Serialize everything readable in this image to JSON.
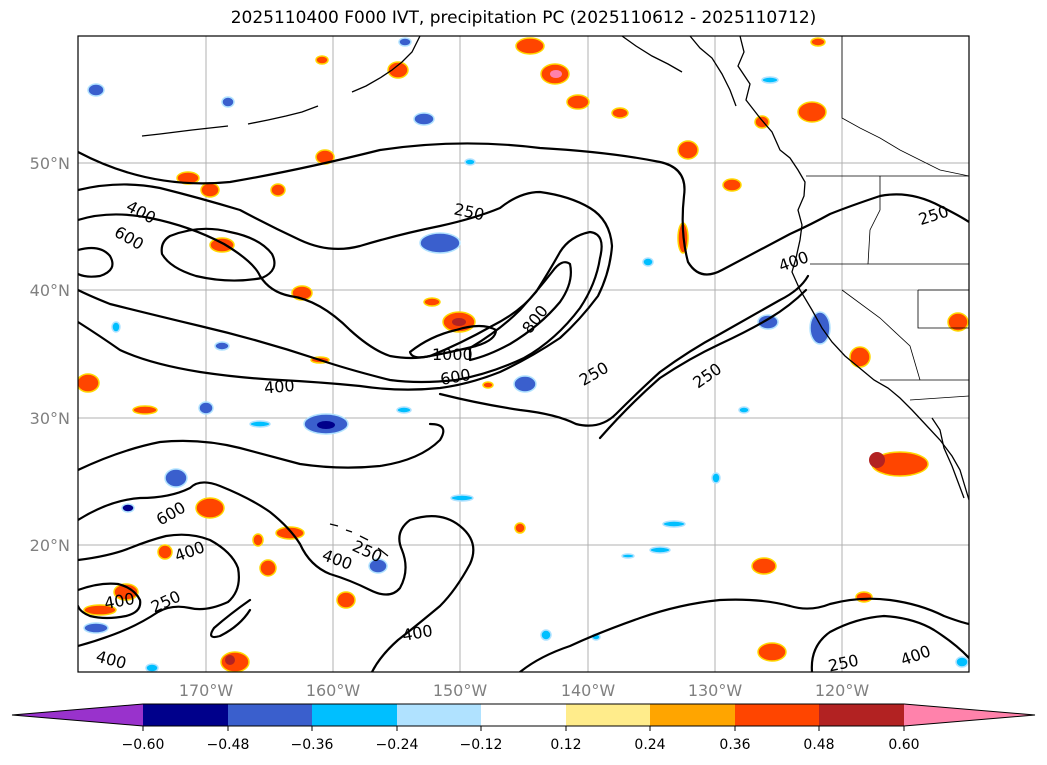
{
  "title": "2025110400 F000 IVT, precipitation PC (2025110612 - 2025110712)",
  "latitude_labels": [
    "50°N",
    "40°N",
    "30°N",
    "20°N"
  ],
  "longitude_labels": [
    "170°W",
    "160°W",
    "150°W",
    "140°W",
    "130°W",
    "120°W"
  ],
  "ivt_contour_labels": [
    {
      "value": "400"
    },
    {
      "value": "600"
    },
    {
      "value": "250"
    },
    {
      "value": "800"
    },
    {
      "value": "1000"
    },
    {
      "value": "600"
    },
    {
      "value": "400"
    },
    {
      "value": "250"
    },
    {
      "value": "250"
    },
    {
      "value": "400"
    },
    {
      "value": "250"
    },
    {
      "value": "600"
    },
    {
      "value": "400"
    },
    {
      "value": "400"
    },
    {
      "value": "250"
    },
    {
      "value": "250"
    },
    {
      "value": "400"
    },
    {
      "value": "400"
    },
    {
      "value": "400"
    },
    {
      "value": "250"
    },
    {
      "value": "400"
    }
  ],
  "colorbar": {
    "ticks": [
      "−0.60",
      "−0.48",
      "−0.36",
      "−0.24",
      "−0.12",
      "0.12",
      "0.24",
      "0.36",
      "0.48",
      "0.60"
    ],
    "colors": [
      "#9932CC",
      "#00008B",
      "#3A5FCD",
      "#00BFFF",
      "#B0E2FF",
      "#FFFFFF",
      "#FFEC8B",
      "#FFA500",
      "#FF4500",
      "#B22222",
      "#FF82AB"
    ]
  }
}
